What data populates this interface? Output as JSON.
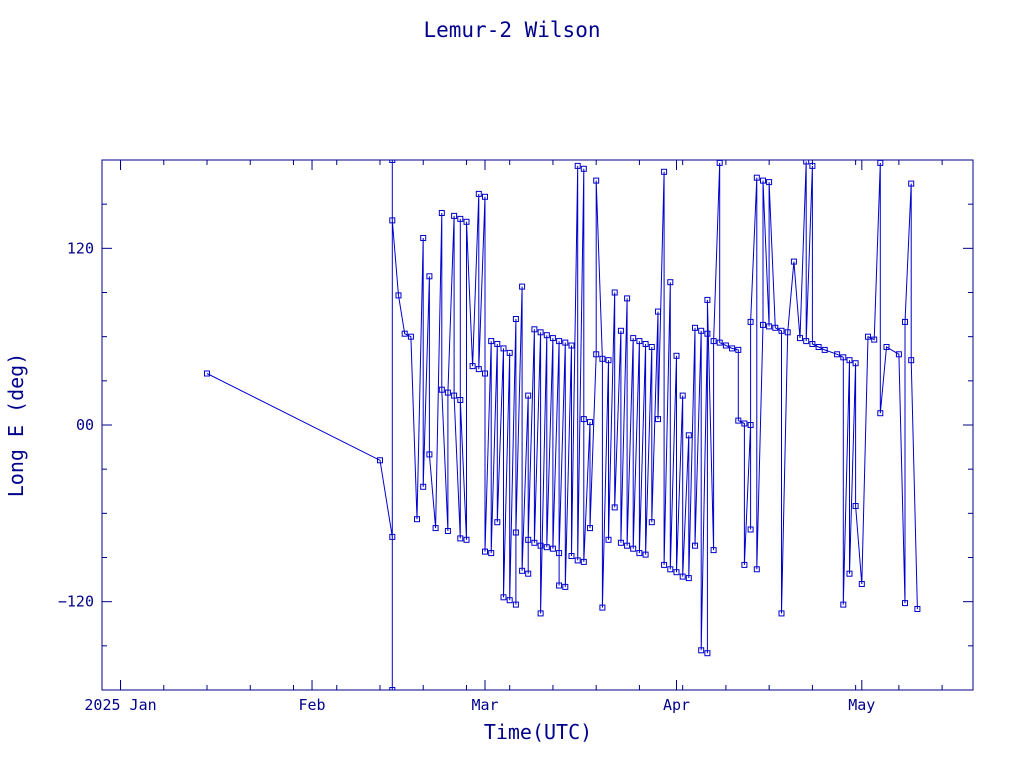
{
  "colors": {
    "axis": "#00008b",
    "series": "#0000cd",
    "background": "#ffffff"
  },
  "chart_data": {
    "type": "line",
    "title": "Lemur-2 Wilson",
    "xlabel": "Time(UTC)",
    "ylabel": "Long E (deg)",
    "x_unit": "date",
    "xlim": [
      "2024-12-29",
      "2025-05-19"
    ],
    "ylim": [
      -180,
      180
    ],
    "x_ticks": [
      {
        "date": "2025-01-01",
        "label": "2025 Jan"
      },
      {
        "date": "2025-02-01",
        "label": "Feb"
      },
      {
        "date": "2025-03-01",
        "label": "Mar"
      },
      {
        "date": "2025-04-01",
        "label": "Apr"
      },
      {
        "date": "2025-05-01",
        "label": "May"
      }
    ],
    "y_ticks": [
      {
        "value": 120,
        "label": "120"
      },
      {
        "value": 0,
        "label": "00"
      },
      {
        "value": -120,
        "label": "−120"
      }
    ],
    "grid": false,
    "marker": "square",
    "series": [
      {
        "points": [
          [
            "2025-01-15",
            35
          ],
          [
            "2025-02-12",
            -24
          ],
          [
            "2025-02-14",
            -76
          ],
          [
            "2025-02-14",
            -180
          ],
          [
            "2025-02-14",
            180
          ],
          [
            "2025-02-14",
            139
          ],
          [
            "2025-02-15",
            88
          ],
          [
            "2025-02-16",
            62
          ],
          [
            "2025-02-17",
            60
          ],
          [
            "2025-02-18",
            -64
          ],
          [
            "2025-02-19",
            127
          ],
          [
            "2025-02-19",
            -42
          ],
          [
            "2025-02-20",
            101
          ],
          [
            "2025-02-20",
            -20
          ],
          [
            "2025-02-21",
            -70
          ],
          [
            "2025-02-22",
            144
          ],
          [
            "2025-02-22",
            24
          ],
          [
            "2025-02-23",
            -72
          ],
          [
            "2025-02-23",
            22
          ],
          [
            "2025-02-24",
            142
          ],
          [
            "2025-02-24",
            20
          ],
          [
            "2025-02-25",
            -77
          ],
          [
            "2025-02-25",
            140
          ],
          [
            "2025-02-25",
            17
          ],
          [
            "2025-02-26",
            -78
          ],
          [
            "2025-02-26",
            138
          ],
          [
            "2025-02-27",
            40
          ],
          [
            "2025-02-28",
            157
          ],
          [
            "2025-02-28",
            38
          ],
          [
            "2025-03-01",
            155
          ],
          [
            "2025-03-01",
            35
          ],
          [
            "2025-03-01",
            -86
          ],
          [
            "2025-03-02",
            57
          ],
          [
            "2025-03-02",
            -87
          ],
          [
            "2025-03-03",
            55
          ],
          [
            "2025-03-03",
            -66
          ],
          [
            "2025-03-04",
            52
          ],
          [
            "2025-03-04",
            -117
          ],
          [
            "2025-03-05",
            49
          ],
          [
            "2025-03-05",
            -119
          ],
          [
            "2025-03-06",
            72
          ],
          [
            "2025-03-06",
            -122
          ],
          [
            "2025-03-06",
            -73
          ],
          [
            "2025-03-07",
            94
          ],
          [
            "2025-03-07",
            -99
          ],
          [
            "2025-03-08",
            20
          ],
          [
            "2025-03-08",
            -101
          ],
          [
            "2025-03-08",
            -78
          ],
          [
            "2025-03-09",
            65
          ],
          [
            "2025-03-09",
            -80
          ],
          [
            "2025-03-10",
            63
          ],
          [
            "2025-03-10",
            -82
          ],
          [
            "2025-03-10",
            -128
          ],
          [
            "2025-03-11",
            61
          ],
          [
            "2025-03-11",
            -83
          ],
          [
            "2025-03-12",
            59
          ],
          [
            "2025-03-12",
            -84
          ],
          [
            "2025-03-13",
            57
          ],
          [
            "2025-03-13",
            -109
          ],
          [
            "2025-03-13",
            -87
          ],
          [
            "2025-03-14",
            56
          ],
          [
            "2025-03-14",
            -110
          ],
          [
            "2025-03-15",
            54
          ],
          [
            "2025-03-15",
            -89
          ],
          [
            "2025-03-16",
            176
          ],
          [
            "2025-03-16",
            -92
          ],
          [
            "2025-03-17",
            174
          ],
          [
            "2025-03-17",
            4
          ],
          [
            "2025-03-17",
            -93
          ],
          [
            "2025-03-18",
            2
          ],
          [
            "2025-03-18",
            -70
          ],
          [
            "2025-03-19",
            48
          ],
          [
            "2025-03-19",
            166
          ],
          [
            "2025-03-20",
            45
          ],
          [
            "2025-03-20",
            -124
          ],
          [
            "2025-03-21",
            44
          ],
          [
            "2025-03-21",
            -78
          ],
          [
            "2025-03-22",
            90
          ],
          [
            "2025-03-22",
            -56
          ],
          [
            "2025-03-23",
            64
          ],
          [
            "2025-03-23",
            -80
          ],
          [
            "2025-03-24",
            86
          ],
          [
            "2025-03-24",
            -82
          ],
          [
            "2025-03-25",
            59
          ],
          [
            "2025-03-25",
            -84
          ],
          [
            "2025-03-26",
            57
          ],
          [
            "2025-03-26",
            -87
          ],
          [
            "2025-03-27",
            55
          ],
          [
            "2025-03-27",
            -88
          ],
          [
            "2025-03-28",
            53
          ],
          [
            "2025-03-28",
            -66
          ],
          [
            "2025-03-29",
            77
          ],
          [
            "2025-03-29",
            4
          ],
          [
            "2025-03-30",
            172
          ],
          [
            "2025-03-30",
            -95
          ],
          [
            "2025-03-31",
            97
          ],
          [
            "2025-03-31",
            -98
          ],
          [
            "2025-04-01",
            47
          ],
          [
            "2025-04-01",
            -100
          ],
          [
            "2025-04-02",
            20
          ],
          [
            "2025-04-02",
            -103
          ],
          [
            "2025-04-03",
            -7
          ],
          [
            "2025-04-03",
            -104
          ],
          [
            "2025-04-04",
            66
          ],
          [
            "2025-04-04",
            -82
          ],
          [
            "2025-04-05",
            64
          ],
          [
            "2025-04-05",
            -153
          ],
          [
            "2025-04-06",
            62
          ],
          [
            "2025-04-06",
            -155
          ],
          [
            "2025-04-06",
            85
          ],
          [
            "2025-04-07",
            -85
          ],
          [
            "2025-04-07",
            57
          ],
          [
            "2025-04-08",
            178
          ],
          [
            "2025-04-08",
            56
          ],
          [
            "2025-04-09",
            54
          ],
          [
            "2025-04-10",
            52
          ],
          [
            "2025-04-11",
            51
          ],
          [
            "2025-04-11",
            3
          ],
          [
            "2025-04-12",
            1
          ],
          [
            "2025-04-12",
            -95
          ],
          [
            "2025-04-13",
            0
          ],
          [
            "2025-04-13",
            -71
          ],
          [
            "2025-04-13",
            70
          ],
          [
            "2025-04-14",
            168
          ],
          [
            "2025-04-14",
            -98
          ],
          [
            "2025-04-15",
            68
          ],
          [
            "2025-04-15",
            166
          ],
          [
            "2025-04-16",
            67
          ],
          [
            "2025-04-16",
            165
          ],
          [
            "2025-04-17",
            66
          ],
          [
            "2025-04-18",
            64
          ],
          [
            "2025-04-18",
            -128
          ],
          [
            "2025-04-19",
            63
          ],
          [
            "2025-04-20",
            111
          ],
          [
            "2025-04-21",
            59
          ],
          [
            "2025-04-22",
            179
          ],
          [
            "2025-04-22",
            57
          ],
          [
            "2025-04-23",
            176
          ],
          [
            "2025-04-23",
            55
          ],
          [
            "2025-04-24",
            53
          ],
          [
            "2025-04-25",
            51
          ],
          [
            "2025-04-27",
            48
          ],
          [
            "2025-04-28",
            46
          ],
          [
            "2025-04-28",
            -122
          ],
          [
            "2025-04-29",
            44
          ],
          [
            "2025-04-29",
            -101
          ],
          [
            "2025-04-30",
            42
          ],
          [
            "2025-04-30",
            -55
          ],
          [
            "2025-05-01",
            -108
          ],
          [
            "2025-05-02",
            60
          ],
          [
            "2025-05-03",
            58
          ],
          [
            "2025-05-04",
            178
          ],
          [
            "2025-05-04",
            8
          ],
          [
            "2025-05-05",
            53
          ],
          [
            "2025-05-07",
            48
          ],
          [
            "2025-05-08",
            -121
          ],
          [
            "2025-05-08",
            70
          ],
          [
            "2025-05-09",
            164
          ],
          [
            "2025-05-09",
            44
          ],
          [
            "2025-05-10",
            -125
          ]
        ]
      }
    ]
  }
}
